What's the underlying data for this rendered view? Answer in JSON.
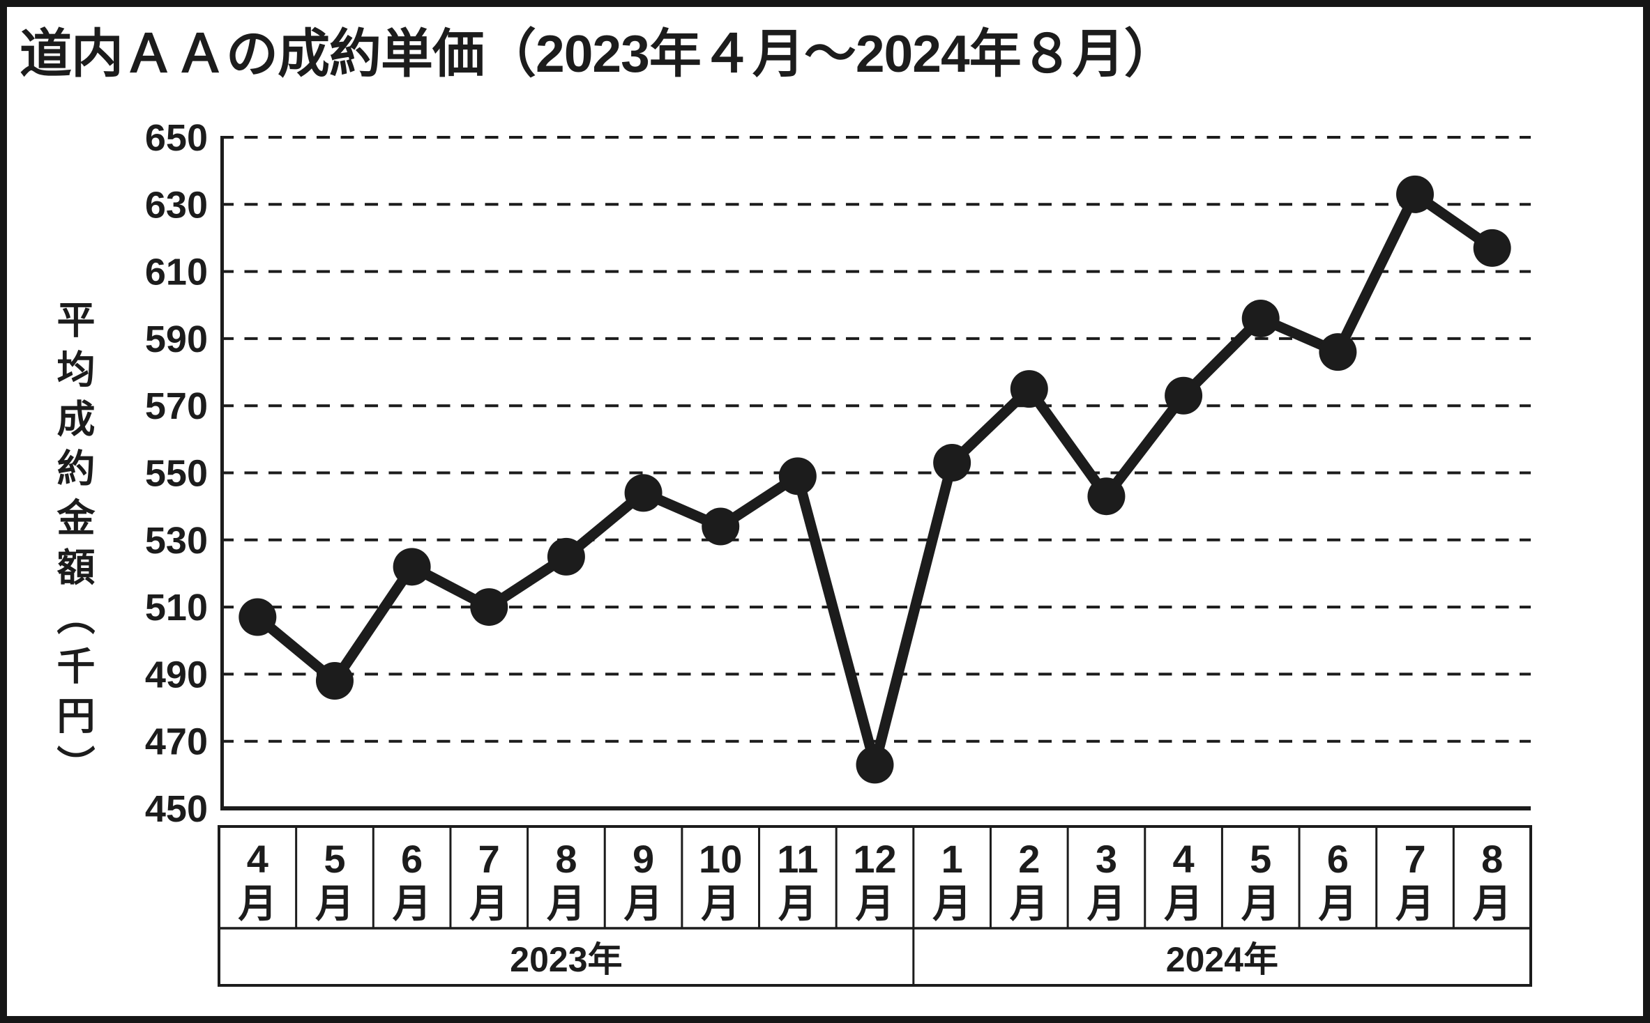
{
  "title": "道内ＡＡの成約単価（2023年４月〜2024年８月）",
  "ink_color": "#1c1c1c",
  "background_color": "#ffffff",
  "chart_data": {
    "type": "line",
    "title": "道内ＡＡの成約単価（2023年４月〜2024年８月）",
    "ylabel": "平均成約金額（千円）",
    "xlabel": "",
    "ylim": [
      450,
      650
    ],
    "yticks": [
      650,
      630,
      610,
      590,
      570,
      550,
      530,
      510,
      490,
      470,
      450
    ],
    "grid": "horizontal-dashed",
    "legend": "none",
    "categories": [
      "4月",
      "5月",
      "6月",
      "7月",
      "8月",
      "9月",
      "10月",
      "11月",
      "12月",
      "1月",
      "2月",
      "3月",
      "4月",
      "5月",
      "6月",
      "7月",
      "8月"
    ],
    "year_groups": [
      {
        "label": "2023年",
        "span": 9
      },
      {
        "label": "2024年",
        "span": 8
      }
    ],
    "series": [
      {
        "name": "平均成約金額",
        "values": [
          507,
          488,
          522,
          510,
          525,
          544,
          534,
          549,
          463,
          553,
          575,
          543,
          573,
          596,
          586,
          633,
          617
        ]
      }
    ],
    "marker": "filled-circle",
    "line_color": "#1c1c1c"
  }
}
